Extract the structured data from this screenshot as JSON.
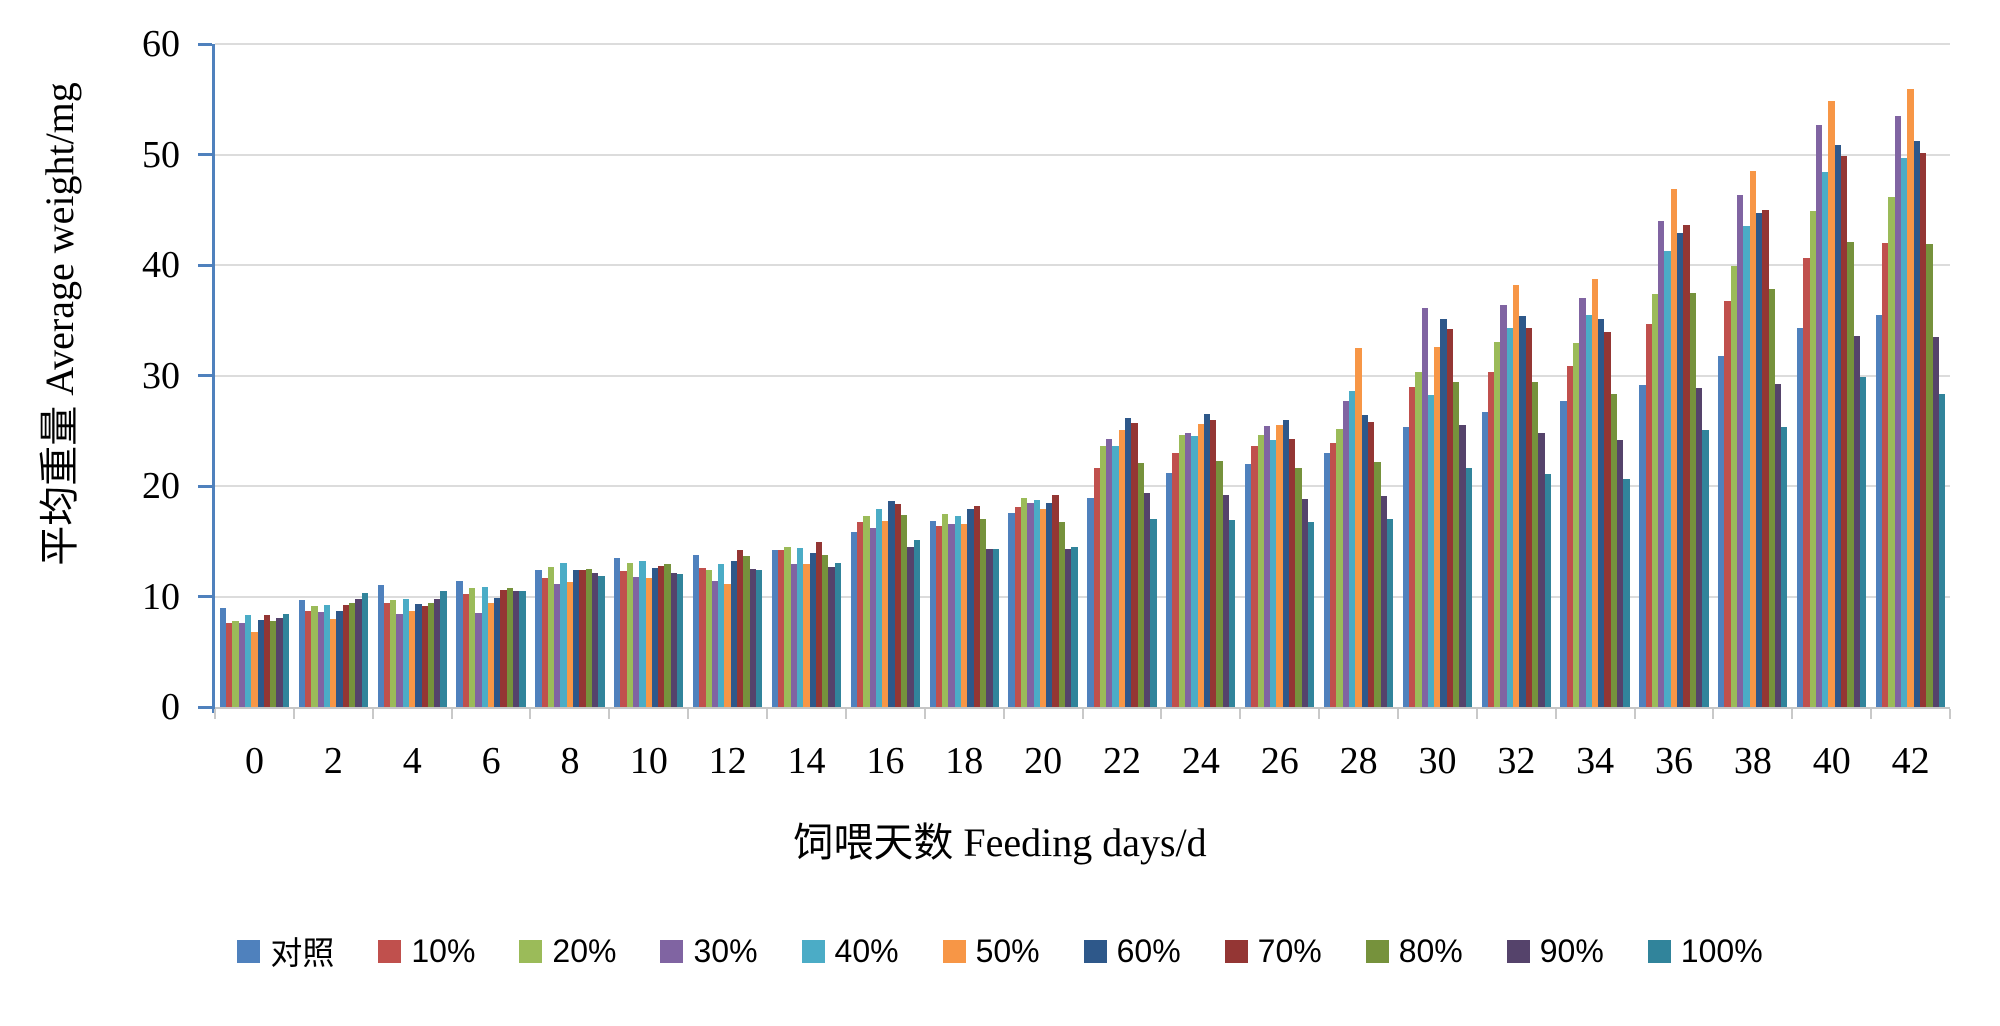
{
  "chart_data": {
    "type": "bar",
    "title": "",
    "xlabel": "饲喂天数 Feeding days/d",
    "ylabel": "平均重量 Average weight/mg",
    "ylim": [
      0,
      60
    ],
    "yticks": [
      0,
      10,
      20,
      30,
      40,
      50,
      60
    ],
    "grid": "horizontal",
    "legend_position": "bottom",
    "categories": [
      "0",
      "2",
      "4",
      "6",
      "8",
      "10",
      "12",
      "14",
      "16",
      "18",
      "20",
      "22",
      "24",
      "26",
      "28",
      "30",
      "32",
      "34",
      "36",
      "38",
      "40",
      "42"
    ],
    "series": [
      {
        "name": "对照",
        "color": "#4F81BD",
        "values": [
          9.0,
          9.7,
          11.0,
          11.4,
          12.4,
          13.5,
          13.8,
          14.2,
          15.8,
          16.8,
          17.6,
          18.9,
          21.2,
          22.0,
          23.0,
          25.3,
          26.7,
          27.7,
          29.1,
          31.8,
          34.3,
          35.5
        ]
      },
      {
        "name": "10%",
        "color": "#C0504D",
        "values": [
          7.6,
          8.7,
          9.4,
          10.2,
          11.7,
          12.3,
          12.6,
          14.2,
          16.7,
          16.4,
          18.1,
          21.6,
          23.0,
          23.6,
          23.9,
          29.0,
          30.3,
          30.9,
          34.7,
          36.7,
          40.6,
          42.0
        ]
      },
      {
        "name": "20%",
        "color": "#9BBB59",
        "values": [
          7.8,
          9.1,
          9.7,
          10.8,
          12.7,
          13.0,
          12.4,
          14.5,
          17.3,
          17.5,
          18.9,
          23.6,
          24.6,
          24.6,
          25.2,
          30.3,
          33.0,
          32.9,
          37.4,
          39.9,
          44.9,
          46.2
        ]
      },
      {
        "name": "30%",
        "color": "#8064A2",
        "values": [
          7.6,
          8.6,
          8.4,
          8.5,
          11.1,
          11.8,
          11.4,
          12.9,
          16.2,
          16.6,
          18.5,
          24.3,
          24.8,
          25.4,
          27.7,
          36.1,
          36.4,
          37.0,
          44.0,
          46.3,
          52.7,
          53.5
        ]
      },
      {
        "name": "40%",
        "color": "#4BACC6",
        "values": [
          8.3,
          9.2,
          9.8,
          10.9,
          13.0,
          13.2,
          12.9,
          14.4,
          17.9,
          17.3,
          18.7,
          23.6,
          24.5,
          24.2,
          28.6,
          28.2,
          34.3,
          35.5,
          41.3,
          43.5,
          48.4,
          49.7
        ]
      },
      {
        "name": "50%",
        "color": "#F79646",
        "values": [
          6.8,
          8.0,
          8.7,
          9.4,
          11.3,
          11.7,
          11.1,
          12.9,
          16.8,
          16.6,
          17.9,
          25.1,
          25.6,
          25.5,
          32.5,
          32.6,
          38.2,
          38.7,
          46.9,
          48.5,
          54.8,
          55.9
        ]
      },
      {
        "name": "60%",
        "color": "#2E588A",
        "values": [
          7.9,
          8.7,
          9.3,
          9.9,
          12.4,
          12.6,
          13.2,
          13.9,
          18.6,
          17.9,
          18.5,
          26.2,
          26.5,
          26.0,
          26.4,
          35.1,
          35.4,
          35.1,
          42.9,
          44.7,
          50.9,
          51.2
        ]
      },
      {
        "name": "70%",
        "color": "#943634",
        "values": [
          8.3,
          9.2,
          9.1,
          10.6,
          12.4,
          12.8,
          14.2,
          14.9,
          18.4,
          18.2,
          19.2,
          25.7,
          26.0,
          24.3,
          25.8,
          34.2,
          34.3,
          33.9,
          43.6,
          45.0,
          49.9,
          50.1
        ]
      },
      {
        "name": "80%",
        "color": "#76923C",
        "values": [
          7.8,
          9.4,
          9.4,
          10.8,
          12.5,
          12.9,
          13.7,
          13.8,
          17.4,
          17.0,
          16.7,
          22.1,
          22.3,
          21.6,
          22.2,
          29.4,
          29.4,
          28.3,
          37.5,
          37.8,
          42.1,
          41.9
        ]
      },
      {
        "name": "90%",
        "color": "#55436B",
        "values": [
          8.1,
          9.8,
          9.8,
          10.5,
          12.1,
          12.1,
          12.5,
          12.7,
          14.5,
          14.3,
          14.3,
          19.4,
          19.2,
          18.8,
          19.1,
          25.5,
          24.8,
          24.2,
          28.9,
          29.2,
          33.6,
          33.5
        ]
      },
      {
        "name": "100%",
        "color": "#31849B",
        "values": [
          8.4,
          10.3,
          10.5,
          10.5,
          11.9,
          12.0,
          12.4,
          13.0,
          15.1,
          14.3,
          14.5,
          17.0,
          16.9,
          16.7,
          17.0,
          21.6,
          21.1,
          20.6,
          25.1,
          25.3,
          29.9,
          28.3
        ]
      }
    ],
    "axis_colors": {
      "y_spine": "#4F81BD",
      "gridline": "#DCDCDC",
      "x_baseline": "#C6C6C6"
    }
  }
}
